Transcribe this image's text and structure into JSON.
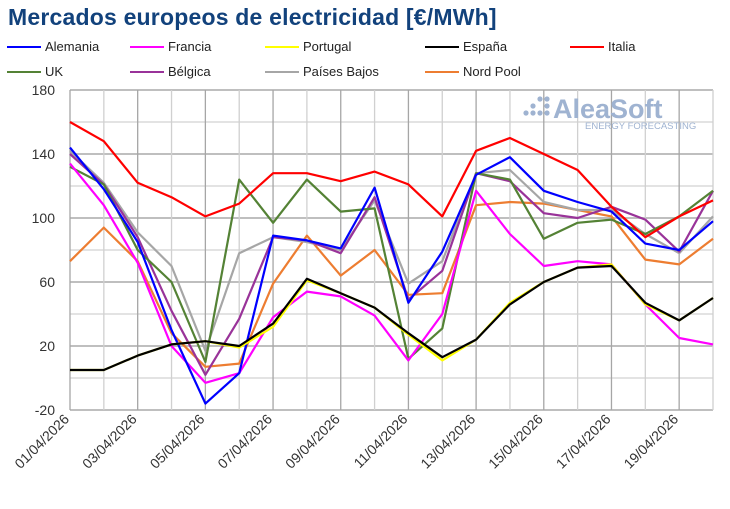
{
  "chart_data": {
    "type": "line",
    "title": "Mercados europeos de electricidad [€/MWh]",
    "xlabel": "",
    "ylabel": "",
    "ylim": [
      -20,
      180
    ],
    "yticks": [
      -20,
      20,
      60,
      100,
      140,
      180
    ],
    "grid": true,
    "legend": "top",
    "x": [
      "01/04/2026",
      "02/04/2026",
      "03/04/2026",
      "04/04/2026",
      "05/04/2026",
      "06/04/2026",
      "07/04/2026",
      "08/04/2026",
      "09/04/2026",
      "10/04/2026",
      "11/04/2026",
      "12/04/2026",
      "13/04/2026",
      "14/04/2026",
      "15/04/2026",
      "16/04/2026",
      "17/04/2026",
      "18/04/2026",
      "19/04/2026",
      "20/04/2026"
    ],
    "xtick_labels": [
      "01/04/2026",
      "03/04/2026",
      "05/04/2026",
      "07/04/2026",
      "09/04/2026",
      "11/04/2026",
      "13/04/2026",
      "15/04/2026",
      "17/04/2026",
      "19/04/2026"
    ],
    "series": [
      {
        "name": "Alemania",
        "color": "#0000ff",
        "values": [
          144,
          118,
          85,
          30,
          -16,
          3,
          89,
          86,
          81,
          119,
          47,
          79,
          127,
          138,
          117,
          110,
          104,
          84,
          80,
          98
        ]
      },
      {
        "name": "Francia",
        "color": "#ff00ff",
        "values": [
          134,
          108,
          72,
          20,
          -3,
          3,
          38,
          54,
          51,
          39,
          11,
          40,
          117,
          90,
          70,
          73,
          71,
          46,
          25,
          21
        ]
      },
      {
        "name": "Portugal",
        "color": "#ffff00",
        "values": [
          5,
          5,
          14,
          21,
          23,
          19,
          32,
          61,
          53,
          44,
          27,
          11,
          24,
          47,
          60,
          69,
          71,
          46,
          36,
          50
        ]
      },
      {
        "name": "España",
        "color": "#000000",
        "values": [
          5,
          5,
          14,
          21,
          23,
          20,
          34,
          62,
          53,
          44,
          28,
          13,
          24,
          46,
          60,
          69,
          70,
          47,
          36,
          50
        ]
      },
      {
        "name": "Italia",
        "color": "#ff0000",
        "values": [
          160,
          148,
          122,
          113,
          101,
          109,
          128,
          128,
          123,
          129,
          121,
          101,
          142,
          150,
          140,
          130,
          107,
          88,
          101,
          111
        ]
      },
      {
        "name": "UK",
        "color": "#548235",
        "values": [
          132,
          121,
          80,
          60,
          10,
          124,
          97,
          124,
          104,
          106,
          12,
          31,
          128,
          124,
          87,
          97,
          99,
          90,
          101,
          117
        ]
      },
      {
        "name": "Bélgica",
        "color": "#993399",
        "values": [
          140,
          121,
          88,
          42,
          2,
          37,
          88,
          86,
          78,
          113,
          49,
          67,
          128,
          123,
          103,
          100,
          107,
          99,
          79,
          117
        ]
      },
      {
        "name": "Países Bajos",
        "color": "#a6a6a6",
        "values": [
          142,
          122,
          91,
          70,
          17,
          78,
          88,
          85,
          80,
          111,
          59,
          73,
          128,
          130,
          110,
          105,
          105,
          90,
          78,
          101
        ]
      },
      {
        "name": "Nord Pool",
        "color": "#ed7d31",
        "values": [
          73,
          94,
          73,
          28,
          7,
          9,
          59,
          89,
          64,
          80,
          52,
          53,
          108,
          110,
          109,
          105,
          101,
          74,
          71,
          87
        ]
      }
    ]
  },
  "logo": {
    "name": "AleaSoft",
    "tagline": "ENERGY FORECASTING"
  }
}
